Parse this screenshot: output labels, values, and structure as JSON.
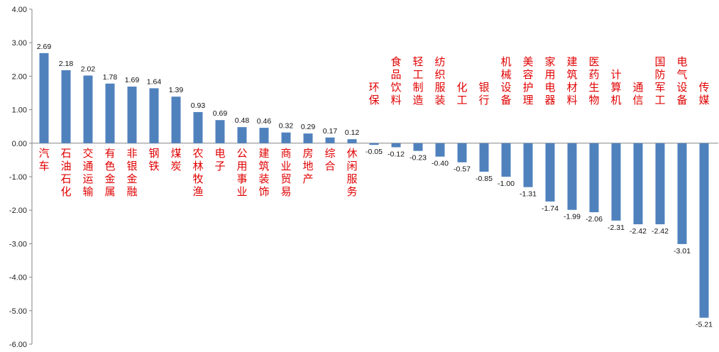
{
  "chart_data": {
    "type": "bar",
    "title": "",
    "xlabel": "",
    "ylabel": "",
    "ylim": [
      -6,
      4
    ],
    "yticks": [
      "4.00",
      "3.00",
      "2.00",
      "1.00",
      "0.00",
      "-1.00",
      "-2.00",
      "-3.00",
      "-4.00",
      "-5.00",
      "-6.00"
    ],
    "categories": [
      "汽车",
      "石油石化",
      "交通运输",
      "有色金属",
      "非银金融",
      "钢铁",
      "煤炭",
      "农林牧渔",
      "电子",
      "公用事业",
      "建筑装饰",
      "商业贸易",
      "房地产",
      "综合",
      "休闲服务",
      "环保",
      "食品饮料",
      "轻工制造",
      "纺织服装",
      "化工",
      "银行",
      "机械设备",
      "美容护理",
      "家用电器",
      "建筑材料",
      "医药生物",
      "计算机",
      "通信",
      "国防军工",
      "电气设备",
      "传媒"
    ],
    "values": [
      2.69,
      2.18,
      2.02,
      1.78,
      1.69,
      1.64,
      1.39,
      0.93,
      0.69,
      0.48,
      0.46,
      0.32,
      0.29,
      0.17,
      0.12,
      -0.05,
      -0.12,
      -0.23,
      -0.4,
      -0.57,
      -0.85,
      -1.0,
      -1.31,
      -1.74,
      -1.99,
      -2.06,
      -2.31,
      -2.42,
      -2.42,
      -3.01,
      -5.21
    ],
    "value_labels": [
      "2.69",
      "2.18",
      "2.02",
      "1.78",
      "1.69",
      "1.64",
      "1.39",
      "0.93",
      "0.69",
      "0.48",
      "0.46",
      "0.32",
      "0.29",
      "0.17",
      "0.12",
      "-0.05",
      "-0.12",
      "-0.23",
      "-0.40",
      "-0.57",
      "-0.85",
      "-1.00",
      "-1.31",
      "-1.74",
      "-1.99",
      "-2.06",
      "-2.31",
      "-2.42",
      "-2.42",
      "-3.01",
      "-5.21"
    ],
    "grid": false,
    "legend": "none",
    "bar_color": "#4f81bd",
    "label_color": "#e00000"
  }
}
